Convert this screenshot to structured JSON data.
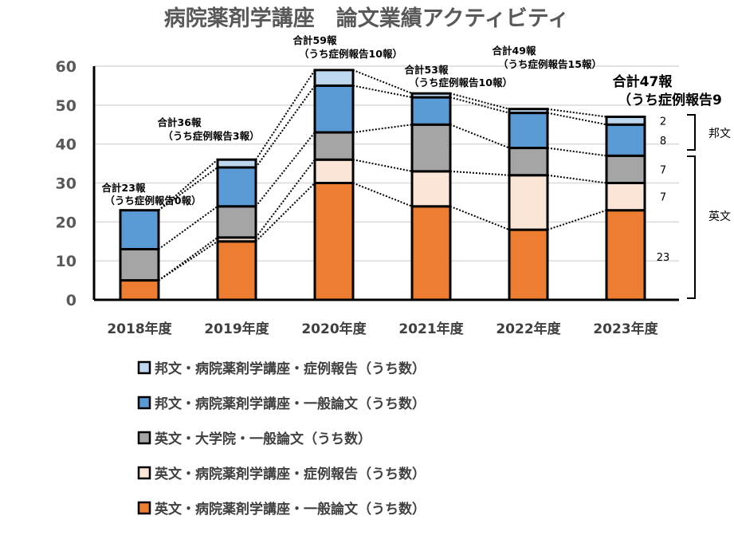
{
  "chart_data": {
    "type": "bar",
    "stacked": true,
    "title": "病院薬剤学講座　論文業績アクティビティ",
    "xlabel": "",
    "ylabel": "",
    "ylim": [
      0,
      60
    ],
    "yticks": [
      0,
      10,
      20,
      30,
      40,
      50,
      60
    ],
    "grid": true,
    "categories": [
      "2018年度",
      "2019年度",
      "2020年度",
      "2021年度",
      "2022年度",
      "2023年度"
    ],
    "series": [
      {
        "name": "英文・病院薬剤学講座・一般論文（うち数）",
        "color": "#ED7D31",
        "values": [
          5,
          15,
          30,
          24,
          18,
          23
        ]
      },
      {
        "name": "英文・病院薬剤学講座・症例報告（うち数）",
        "color": "#FBE5D6",
        "values": [
          0,
          1,
          6,
          9,
          14,
          7
        ]
      },
      {
        "name": "英文・大学院・一般論文（うち数）",
        "color": "#A5A5A5",
        "values": [
          8,
          8,
          7,
          12,
          7,
          7
        ]
      },
      {
        "name": "邦文・病院薬剤学講座・一般論文（うち数）",
        "color": "#5B9BD5",
        "values": [
          10,
          10,
          12,
          7,
          9,
          8
        ]
      },
      {
        "name": "邦文・病院薬剤学講座・症例報告（うち数）",
        "color": "#BDD7EE",
        "values": [
          0,
          2,
          4,
          1,
          1,
          2
        ]
      }
    ],
    "legend_order": [
      4,
      3,
      2,
      1,
      0
    ],
    "legend_position": "bottom",
    "annotations": [
      {
        "total": "合計23報",
        "case": "（うち症例報告0報）"
      },
      {
        "total": "合計36報",
        "case": "（うち症例報告3報）"
      },
      {
        "total": "合計59報",
        "case": "（うち症例報告10報）"
      },
      {
        "total": "合計53報",
        "case": "（うち症例報告10報）"
      },
      {
        "total": "合計49報",
        "case": "（うち症例報告15報）"
      },
      {
        "total": "合計47報",
        "case": "（うち症例報告9"
      }
    ],
    "last_bar_labels": [
      "23",
      "7",
      "7",
      "8",
      "2"
    ],
    "groups": [
      {
        "label": "邦文"
      },
      {
        "label": "英文"
      }
    ]
  }
}
